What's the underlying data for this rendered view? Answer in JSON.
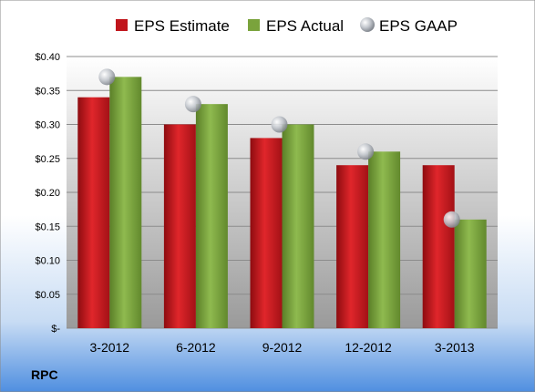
{
  "chart_data": {
    "type": "bar",
    "categories": [
      "3-2012",
      "6-2012",
      "9-2012",
      "12-2012",
      "3-2013"
    ],
    "series": [
      {
        "name": "EPS Estimate",
        "type": "bar",
        "color": "#c0151c",
        "values": [
          0.34,
          0.3,
          0.28,
          0.24,
          0.24
        ]
      },
      {
        "name": "EPS Actual",
        "type": "bar",
        "color": "#7aa33c",
        "values": [
          0.37,
          0.33,
          0.3,
          0.26,
          0.16
        ]
      },
      {
        "name": "EPS GAAP",
        "type": "marker",
        "color": "#b8bcc4",
        "values": [
          0.37,
          0.33,
          0.3,
          0.26,
          0.16
        ]
      }
    ],
    "ylim": [
      0,
      0.4
    ],
    "yticks": [
      0,
      0.05,
      0.1,
      0.15,
      0.2,
      0.25,
      0.3,
      0.35,
      0.4
    ],
    "ytick_labels": [
      "$-",
      "$0.05",
      "$0.10",
      "$0.15",
      "$0.20",
      "$0.25",
      "$0.30",
      "$0.35",
      "$0.40"
    ],
    "grid": true,
    "legend_position": "top"
  },
  "footer": {
    "label": "RPC"
  }
}
